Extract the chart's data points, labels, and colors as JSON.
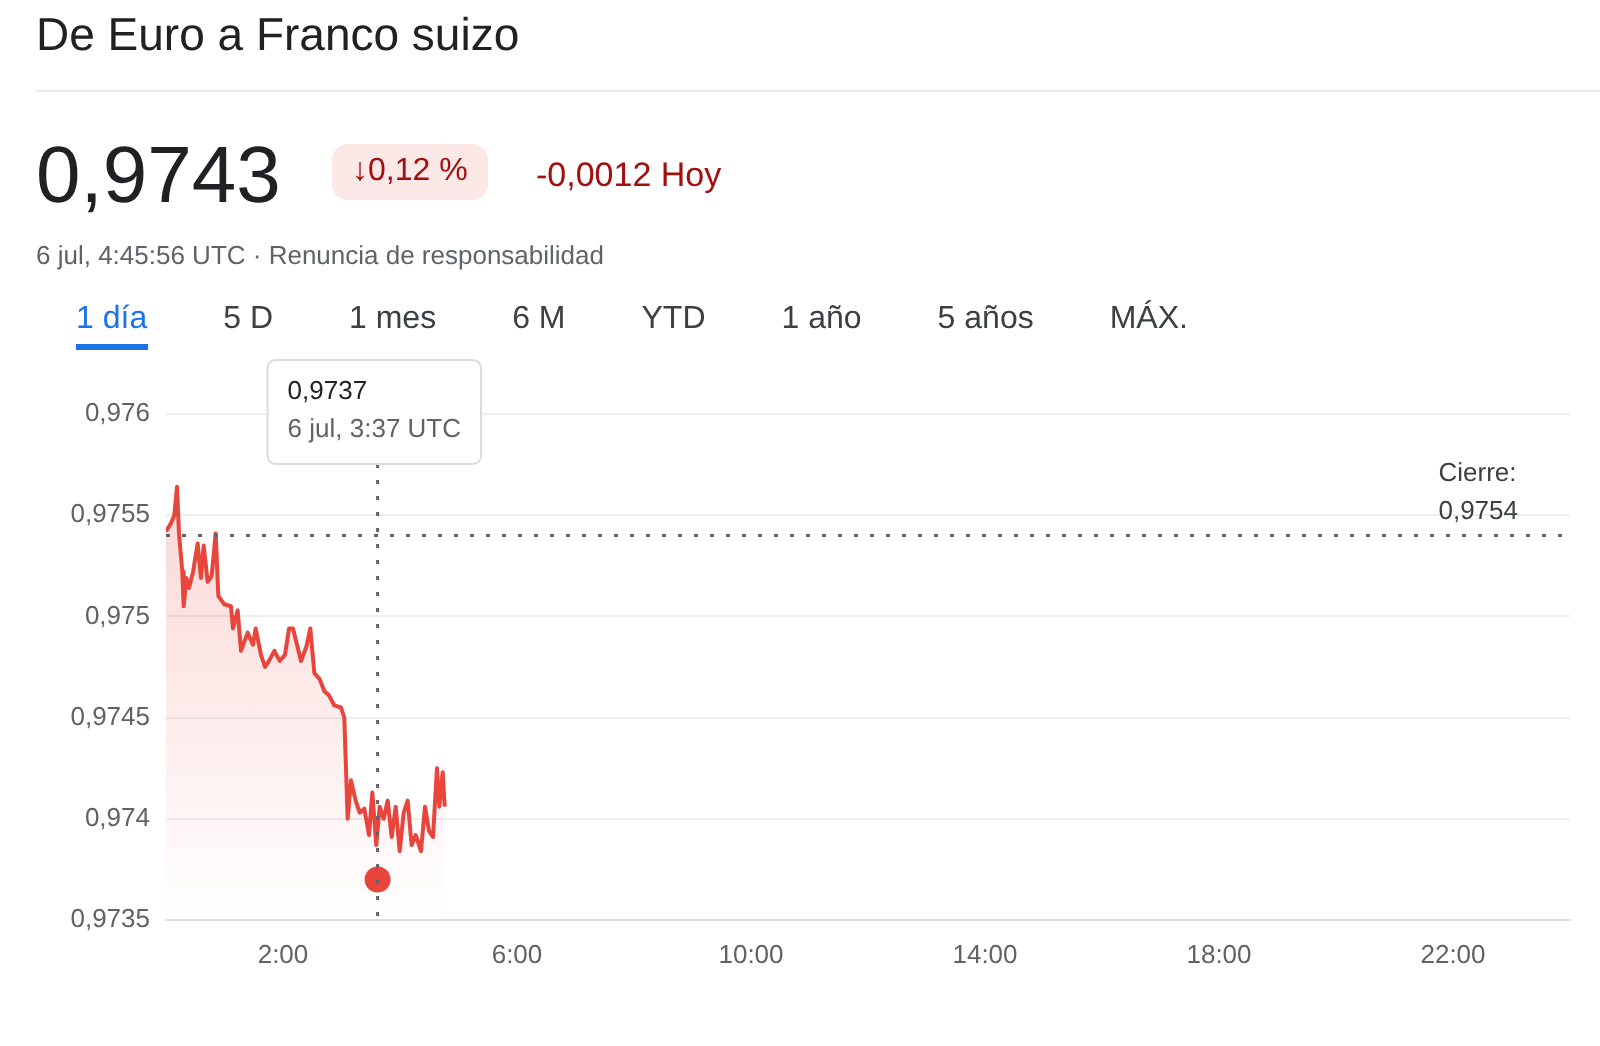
{
  "chart_data": {
    "type": "area",
    "title": "De Euro a Franco suizo",
    "annotations": [
      "0,9743",
      "↓0,12 %",
      "-0,0012 Hoy",
      "6 jul, 4:45:56 UTC · Renuncia de responsabilidad",
      "1 día",
      "5 D",
      "1 mes",
      "6 M",
      "YTD",
      "1 año",
      "5 años",
      "MÁX.",
      "0,9737\n6 jul, 3:37 UTC"
    ],
    "series": [
      {
        "color": "#e8453c",
        "x": [
          0,
          0.085,
          0.142,
          0.188,
          0.222,
          0.279,
          0.302,
          0.348,
          0.393,
          0.462,
          0.541,
          0.598,
          0.644,
          0.712,
          0.781,
          0.849,
          0.895,
          0.997,
          1.111,
          1.145,
          1.225,
          1.282,
          1.396,
          1.487,
          1.533,
          1.624,
          1.692,
          1.761,
          1.852,
          1.943,
          2.034,
          2.103,
          2.171,
          2.239,
          2.308,
          2.399,
          2.467,
          2.536,
          2.627,
          2.707,
          2.786,
          2.877,
          2.991,
          3.048,
          3.105,
          3.162,
          3.242,
          3.311,
          3.39,
          3.47,
          3.527,
          3.595,
          3.652,
          3.721,
          3.789,
          3.858,
          3.926,
          3.994,
          4.063,
          4.131,
          4.199,
          4.268,
          4.359,
          4.427,
          4.496,
          4.564,
          4.632,
          4.672,
          4.73,
          4.764
        ],
        "values": [
          0.97542,
          0.97546,
          0.9755,
          0.97564,
          0.97541,
          0.97522,
          0.97505,
          0.97519,
          0.97514,
          0.97522,
          0.97536,
          0.97519,
          0.97535,
          0.97517,
          0.9752,
          0.97541,
          0.9751,
          0.97506,
          0.97505,
          0.97494,
          0.97503,
          0.97483,
          0.97492,
          0.97486,
          0.97494,
          0.97481,
          0.97475,
          0.97478,
          0.97483,
          0.97478,
          0.97481,
          0.97494,
          0.97494,
          0.97486,
          0.97478,
          0.97485,
          0.97494,
          0.97472,
          0.97469,
          0.97463,
          0.97461,
          0.97456,
          0.97455,
          0.9745,
          0.974,
          0.97419,
          0.97409,
          0.97403,
          0.97405,
          0.97392,
          0.97413,
          0.97387,
          0.97406,
          0.974,
          0.97409,
          0.97391,
          0.97406,
          0.97384,
          0.97403,
          0.97409,
          0.97387,
          0.97392,
          0.97384,
          0.97406,
          0.97394,
          0.97391,
          0.97425,
          0.97406,
          0.97423,
          0.97406
        ]
      },
      {
        "type": "scatter",
        "color": "#e8453c",
        "marker": "circle",
        "x": [
          3.617
        ],
        "values": [
          0.9737
        ]
      }
    ],
    "xlim": [
      0,
      24
    ],
    "xticks": [
      {
        "value": 2,
        "label": "2:00"
      },
      {
        "value": 6,
        "label": "6:00"
      },
      {
        "value": 10,
        "label": "10:00"
      },
      {
        "value": 14,
        "label": "14:00"
      },
      {
        "value": 18,
        "label": "18:00"
      },
      {
        "value": 22,
        "label": "22:00"
      }
    ],
    "ylim": [
      0.9735,
      0.976
    ],
    "yticks": [
      {
        "value": 0.9735,
        "label": "0,9735"
      },
      {
        "value": 0.974,
        "label": "0,974"
      },
      {
        "value": 0.9745,
        "label": "0,9745"
      },
      {
        "value": 0.975,
        "label": "0,975"
      },
      {
        "value": 0.9755,
        "label": "0,9755"
      },
      {
        "value": 0.976,
        "label": "0,976"
      }
    ],
    "ref_lines": [
      {
        "axis": "y",
        "value": 0.9754,
        "label": "Cierre:\n0,9754",
        "line_style": "dotted",
        "color": "#5f6368"
      },
      {
        "axis": "x",
        "value": 3.617,
        "line_style": "dotted",
        "color": "#5f6368"
      }
    ],
    "grid": "y",
    "legend": false,
    "marker": "none",
    "line_style": "solid"
  }
}
